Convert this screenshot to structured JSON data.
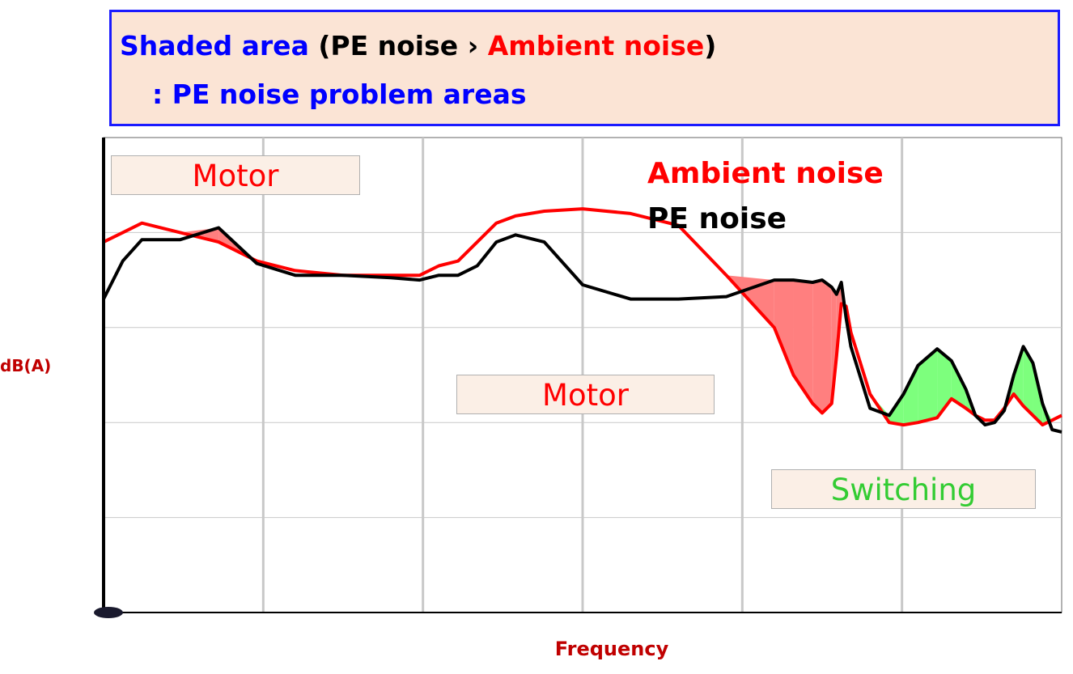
{
  "header": {
    "part1": "Shaded area",
    "part2": "(PE noise",
    "part3": "Ambient noise",
    "part4": ")",
    "line2": ": PE noise problem areas"
  },
  "annotations": {
    "motor_low": "Motor",
    "motor_mid": "Motor",
    "switching": "Switching"
  },
  "legend": {
    "ambient": "Ambient noise",
    "pe": "PE noise"
  },
  "colors": {
    "ambient": "#ff0000",
    "pe": "#000000",
    "shade_pe_over_ambient": "#ff7f7f",
    "shade_switching": "#7dff7d",
    "switching_label": "#33cc33",
    "axis_label": "#c00000",
    "header_border": "#1a1aff",
    "header_bg": "#fbe4d5"
  },
  "chart_data": {
    "type": "line",
    "xlabel": "Frequency",
    "ylabel": "dB(A)",
    "xlim": [
      0,
      100
    ],
    "ylim": [
      0,
      100
    ],
    "grid": true,
    "legend_position": "top-right",
    "series": [
      {
        "name": "Ambient noise",
        "color": "#ff0000",
        "x": [
          0,
          2,
          4,
          8,
          12,
          16,
          20,
          25,
          30,
          33,
          35,
          37,
          39,
          41,
          43,
          46,
          50,
          55,
          60,
          65,
          70,
          72,
          74,
          75,
          76,
          76.5,
          77,
          77.5,
          78,
          80,
          82,
          83.5,
          85,
          87,
          88.5,
          90,
          91,
          92,
          93,
          94,
          95,
          96,
          97,
          98,
          99,
          100
        ],
        "y": [
          78,
          80,
          82,
          80,
          78,
          74,
          72,
          71,
          71,
          71,
          73,
          74,
          78,
          82,
          83.5,
          84.5,
          85,
          84,
          81.5,
          71,
          60,
          50,
          44,
          42,
          44,
          54,
          65,
          64.5,
          59,
          46,
          40,
          39.5,
          40,
          41,
          45,
          43,
          41.5,
          40.5,
          40.5,
          43,
          46,
          43.5,
          41.5,
          39.5,
          40.5,
          41.5
        ]
      },
      {
        "name": "PE noise",
        "color": "#000000",
        "x": [
          0,
          2,
          4,
          8,
          12,
          16,
          20,
          25,
          30,
          33,
          35,
          37,
          39,
          41,
          43,
          46,
          50,
          55,
          60,
          65,
          70,
          72,
          74,
          75,
          76,
          76.5,
          77,
          77.5,
          78,
          80,
          82,
          83.5,
          85,
          87,
          88.5,
          90,
          91,
          92,
          93,
          94,
          95,
          96,
          97,
          98,
          99,
          100
        ],
        "y": [
          66,
          74,
          78.5,
          78.5,
          81,
          73.5,
          71,
          71,
          70.5,
          70,
          71,
          71,
          73,
          78,
          79.5,
          78,
          69,
          66,
          66,
          66.5,
          70,
          70,
          69.5,
          70,
          68.5,
          67,
          69.5,
          62,
          56,
          43,
          41.5,
          46,
          52,
          55.5,
          53,
          47,
          41.5,
          39.5,
          40,
          42.5,
          50,
          56,
          52.5,
          44,
          38.5,
          38
        ]
      }
    ]
  }
}
